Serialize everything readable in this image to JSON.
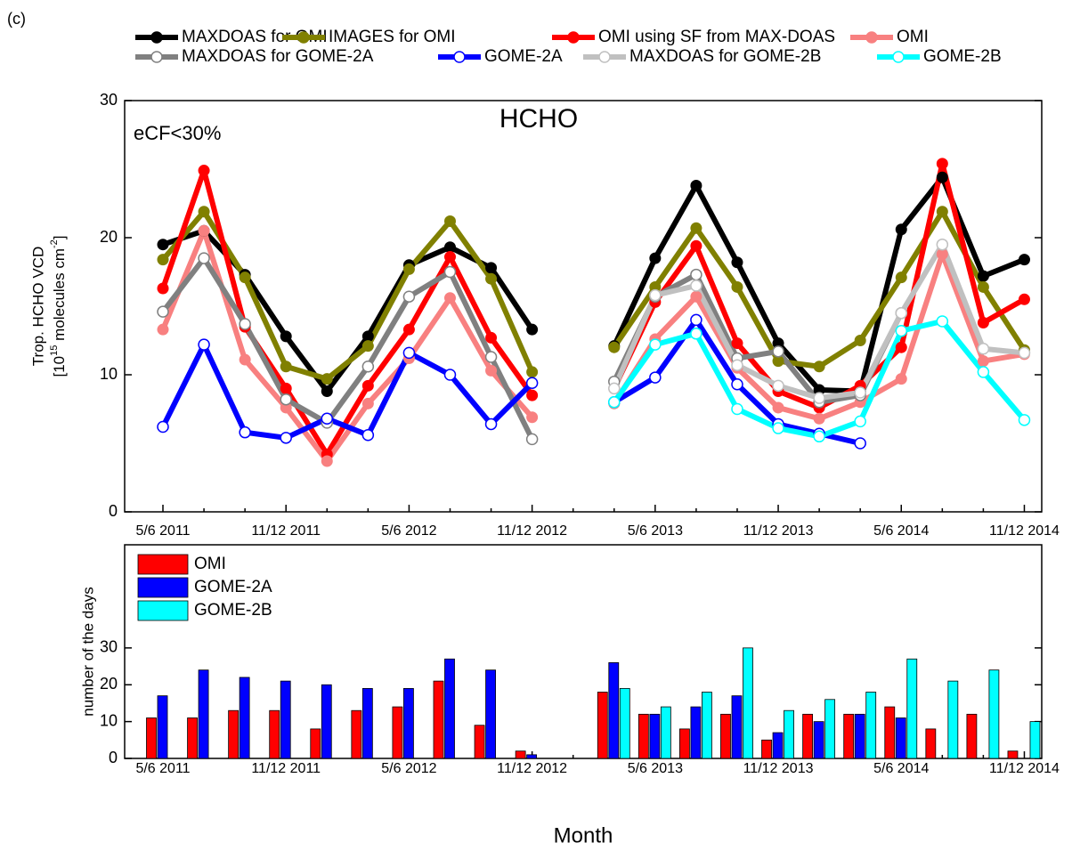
{
  "panel_label": "(c)",
  "chart_data": [
    {
      "type": "line",
      "title": "HCHO",
      "annotation": "eCF<30%",
      "ylabel": "Trop. HCHO VCD",
      "ylabel_line2": [
        "[10",
        "15",
        " molecules cm",
        "-2",
        "]"
      ],
      "categories": [
        "5/6 2011",
        null,
        null,
        "11/12 2011",
        null,
        null,
        "5/6 2012",
        null,
        null,
        "11/12 2012",
        null,
        null,
        "5/6 2013",
        null,
        null,
        "11/12 2013",
        null,
        null,
        "5/6 2014",
        null,
        null,
        "11/12 2014"
      ],
      "ylim": [
        0,
        30
      ],
      "yticks": [
        0,
        10,
        20,
        30
      ],
      "series": [
        {
          "name": "MAXDOAS for OMI",
          "color": "#000000",
          "marker": "filled",
          "values": [
            19.5,
            20.5,
            17.3,
            12.8,
            8.8,
            12.8,
            18.0,
            19.3,
            17.8,
            13.3,
            null,
            12.1,
            18.5,
            23.8,
            18.2,
            12.3,
            8.9,
            8.8,
            20.6,
            24.4,
            17.2,
            18.4
          ]
        },
        {
          "name": "IMAGES for OMI",
          "color": "#808000",
          "marker": "filled",
          "values": [
            18.4,
            21.9,
            17.1,
            10.6,
            9.7,
            12.1,
            17.7,
            21.2,
            17.0,
            10.2,
            null,
            12.0,
            16.4,
            20.7,
            16.4,
            11.0,
            10.6,
            12.5,
            17.1,
            21.9,
            16.4,
            11.8
          ]
        },
        {
          "name": "OMI using SF from MAX-DOAS",
          "color": "#ff0000",
          "marker": "filled",
          "values": [
            16.3,
            24.9,
            13.5,
            9.0,
            4.2,
            9.2,
            13.3,
            18.6,
            12.7,
            8.5,
            null,
            9.0,
            15.3,
            19.4,
            12.3,
            8.8,
            7.6,
            9.2,
            12.0,
            25.4,
            13.8,
            15.5
          ]
        },
        {
          "name": "OMI",
          "color": "#f88080",
          "marker": "filled",
          "values": [
            13.3,
            20.5,
            11.1,
            7.6,
            3.7,
            7.9,
            11.2,
            15.6,
            10.3,
            6.9,
            null,
            7.9,
            12.6,
            15.7,
            10.5,
            7.6,
            6.8,
            8.0,
            9.7,
            18.8,
            11.0,
            11.5
          ]
        },
        {
          "name": "MAXDOAS for GOME-2A",
          "color": "#808080",
          "marker": "open",
          "values": [
            14.6,
            18.5,
            13.7,
            8.2,
            6.5,
            10.6,
            15.7,
            17.5,
            11.3,
            5.3,
            null,
            9.5,
            15.7,
            17.3,
            11.2,
            11.7,
            8.0,
            8.5,
            14.5,
            null,
            null,
            null
          ]
        },
        {
          "name": "GOME-2A",
          "color": "#0000ff",
          "marker": "open",
          "values": [
            6.2,
            12.2,
            5.8,
            5.4,
            6.8,
            5.6,
            11.6,
            10.0,
            6.4,
            9.4,
            null,
            8.0,
            9.8,
            14.0,
            9.3,
            6.4,
            5.7,
            5.0,
            null,
            null,
            null,
            null
          ]
        },
        {
          "name": "MAXDOAS for GOME-2B",
          "color": "#c0c0c0",
          "marker": "open",
          "values": [
            null,
            null,
            null,
            null,
            null,
            null,
            null,
            null,
            null,
            null,
            null,
            9.0,
            15.8,
            16.5,
            10.7,
            9.2,
            8.3,
            8.7,
            14.5,
            19.5,
            11.9,
            11.6
          ]
        },
        {
          "name": "GOME-2B",
          "color": "#00ffff",
          "marker": "open",
          "values": [
            null,
            null,
            null,
            null,
            null,
            null,
            null,
            null,
            null,
            null,
            null,
            8.0,
            12.2,
            13.0,
            7.5,
            6.1,
            5.5,
            6.6,
            13.2,
            13.9,
            10.2,
            6.7
          ]
        }
      ]
    },
    {
      "type": "bar",
      "ylabel": "number of the days",
      "xlabel": "Month",
      "categories": [
        "5/6 2011",
        null,
        null,
        "11/12 2011",
        null,
        null,
        "5/6 2012",
        null,
        null,
        "11/12 2012",
        null,
        null,
        "5/6 2013",
        null,
        null,
        "11/12 2013",
        null,
        null,
        "5/6 2014",
        null,
        null,
        "11/12 2014"
      ],
      "ylim": [
        0,
        58
      ],
      "yticks": [
        0,
        10,
        20,
        30
      ],
      "series": [
        {
          "name": "OMI",
          "color": "#ff0000",
          "values": [
            11,
            11,
            13,
            13,
            8,
            13,
            14,
            21,
            9,
            2,
            null,
            18,
            12,
            8,
            12,
            5,
            12,
            12,
            14,
            8,
            12,
            2
          ]
        },
        {
          "name": "GOME-2A",
          "color": "#0000ff",
          "values": [
            17,
            24,
            22,
            21,
            20,
            19,
            19,
            27,
            24,
            1,
            null,
            26,
            12,
            14,
            17,
            7,
            10,
            12,
            11,
            null,
            null,
            null
          ]
        },
        {
          "name": "GOME-2B",
          "color": "#00ffff",
          "values": [
            null,
            null,
            null,
            null,
            null,
            null,
            null,
            null,
            null,
            null,
            null,
            19,
            14,
            18,
            30,
            13,
            16,
            18,
            27,
            21,
            24,
            10
          ]
        }
      ]
    }
  ]
}
